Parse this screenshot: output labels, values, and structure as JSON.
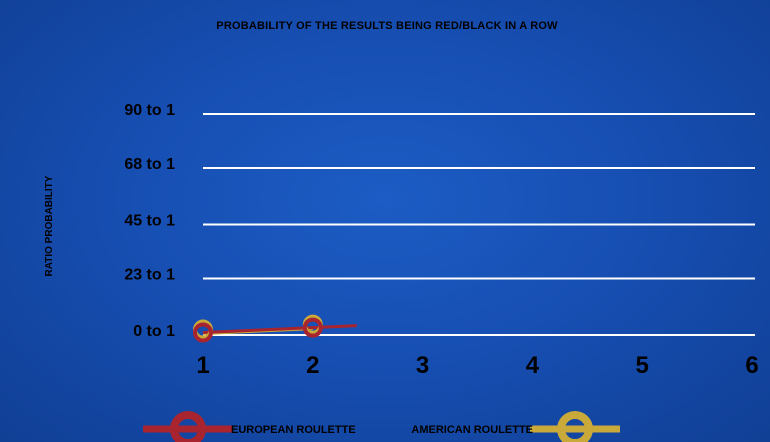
{
  "chart_data": {
    "type": "line",
    "title": "PROBABILITY OF THE RESULTS BEING RED/BLACK IN A ROW",
    "xlabel": "",
    "ylabel": "RATIO PROBABILITY",
    "x": [
      1,
      2,
      3,
      4,
      5,
      6
    ],
    "xlim": [
      1,
      6
    ],
    "y_tick_labels": [
      "0 to 1",
      "23 to 1",
      "45 to 1",
      "68 to 1",
      "90 to 1"
    ],
    "y_tick_values": [
      0,
      23,
      45,
      68,
      90
    ],
    "ylim": [
      0,
      90
    ],
    "grid": true,
    "legend_position": "bottom",
    "series": [
      {
        "name": "EUROPEAN ROULETTE",
        "color": "#a8242f",
        "x": [
          1,
          2
        ],
        "y": [
          1,
          3
        ],
        "trailing_to_x": 2.4
      },
      {
        "name": "AMERICAN ROULETTE",
        "color": "#c9a93a",
        "x": [
          1,
          2
        ],
        "y": [
          1,
          3
        ]
      }
    ]
  }
}
